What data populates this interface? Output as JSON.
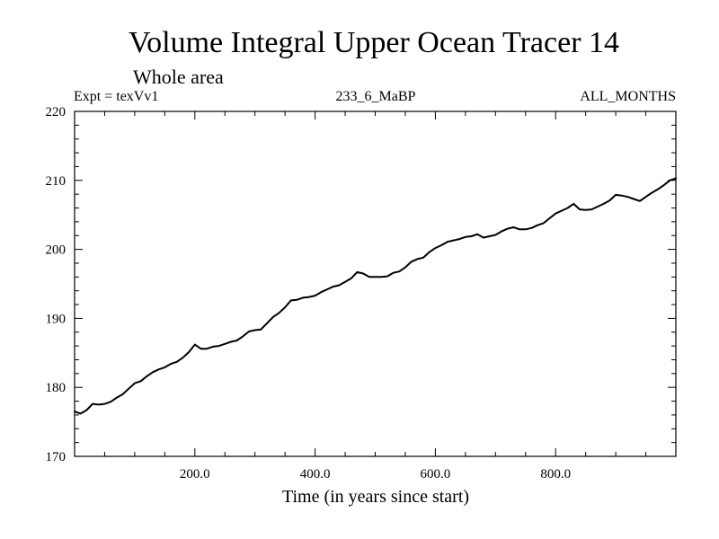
{
  "chart_data": {
    "type": "line",
    "title": "Volume Integral Upper Ocean Tracer 14",
    "subtitle": "Whole area",
    "experiment": "Expt = texVv1",
    "run_id": "233_6_MaBP",
    "months": "ALL_MONTHS",
    "xlabel": "Time (in years since start)",
    "ylabel": "",
    "xlim": [
      0,
      1000
    ],
    "ylim": [
      170,
      220
    ],
    "x_ticks": [
      200,
      400,
      600,
      800
    ],
    "x_tick_labels": [
      "200.0",
      "400.0",
      "600.0",
      "800.0"
    ],
    "y_ticks": [
      170,
      180,
      190,
      200,
      210,
      220
    ],
    "y_tick_labels": [
      "170",
      "180",
      "190",
      "200",
      "210",
      "220"
    ],
    "grid": false,
    "series": [
      {
        "name": "Upper Ocean Tracer 14",
        "color": "#000000",
        "x": [
          0,
          10,
          20,
          30,
          40,
          50,
          60,
          70,
          80,
          90,
          100,
          110,
          120,
          130,
          140,
          150,
          160,
          170,
          180,
          190,
          200,
          210,
          220,
          230,
          240,
          250,
          260,
          270,
          280,
          290,
          300,
          310,
          320,
          330,
          340,
          350,
          360,
          370,
          380,
          390,
          400,
          410,
          420,
          430,
          440,
          450,
          460,
          470,
          480,
          490,
          500,
          510,
          520,
          530,
          540,
          550,
          560,
          570,
          580,
          590,
          600,
          610,
          620,
          630,
          640,
          650,
          660,
          670,
          680,
          690,
          700,
          710,
          720,
          730,
          740,
          750,
          760,
          770,
          780,
          790,
          800,
          810,
          820,
          830,
          840,
          850,
          860,
          870,
          880,
          890,
          900,
          910,
          920,
          930,
          940,
          950,
          960,
          970,
          980,
          990,
          1000
        ],
        "values": [
          176.5,
          176.2,
          176.7,
          177.6,
          177.5,
          177.6,
          177.9,
          178.5,
          179.0,
          179.8,
          180.6,
          180.9,
          181.6,
          182.2,
          182.6,
          182.9,
          183.4,
          183.7,
          184.3,
          185.1,
          186.2,
          185.6,
          185.6,
          185.9,
          186.0,
          186.3,
          186.6,
          186.8,
          187.4,
          188.1,
          188.3,
          188.4,
          189.3,
          190.2,
          190.8,
          191.6,
          192.6,
          192.7,
          193.0,
          193.1,
          193.3,
          193.8,
          194.2,
          194.6,
          194.8,
          195.3,
          195.8,
          196.7,
          196.5,
          196.0,
          196.0,
          196.0,
          196.1,
          196.6,
          196.8,
          197.4,
          198.2,
          198.6,
          198.8,
          199.6,
          200.2,
          200.6,
          201.1,
          201.3,
          201.5,
          201.8,
          201.9,
          202.2,
          201.7,
          201.9,
          202.1,
          202.6,
          203.0,
          203.2,
          202.9,
          202.9,
          203.1,
          203.5,
          203.8,
          204.5,
          205.2,
          205.6,
          206.0,
          206.6,
          205.8,
          205.7,
          205.8,
          206.2,
          206.6,
          207.1,
          207.9,
          207.8,
          207.6,
          207.3,
          207.0,
          207.6,
          208.2,
          208.7,
          209.3,
          210.0,
          210.3
        ]
      }
    ]
  }
}
